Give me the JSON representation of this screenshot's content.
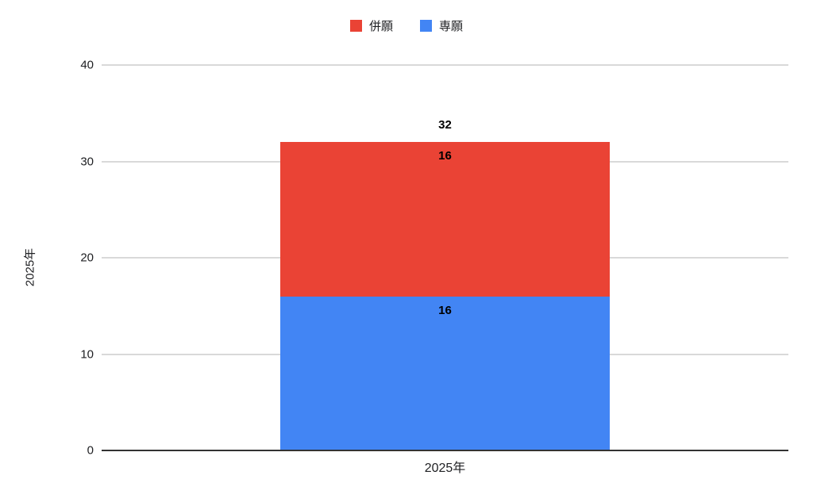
{
  "chart_data": {
    "type": "bar",
    "stacked": true,
    "categories": [
      "2025年"
    ],
    "series": [
      {
        "name": "専願",
        "color": "#4285F4",
        "values": [
          16
        ]
      },
      {
        "name": "併願",
        "color": "#EA4335",
        "values": [
          16
        ]
      }
    ],
    "totals": [
      32
    ],
    "title": "",
    "xlabel": "2025年",
    "ylabel": "2025年",
    "ylim": [
      0,
      40
    ],
    "ytick_step": 10,
    "yticks": [
      0,
      10,
      20,
      30,
      40
    ],
    "grid": true,
    "legend_position": "top",
    "colors": {
      "gridline": "#d9d9d9",
      "axis_line": "#333333",
      "label_text": "#000000",
      "tick_text": "#202124"
    }
  },
  "legend": {
    "items": [
      {
        "label": "併願",
        "color": "#EA4335"
      },
      {
        "label": "専願",
        "color": "#4285F4"
      }
    ]
  }
}
